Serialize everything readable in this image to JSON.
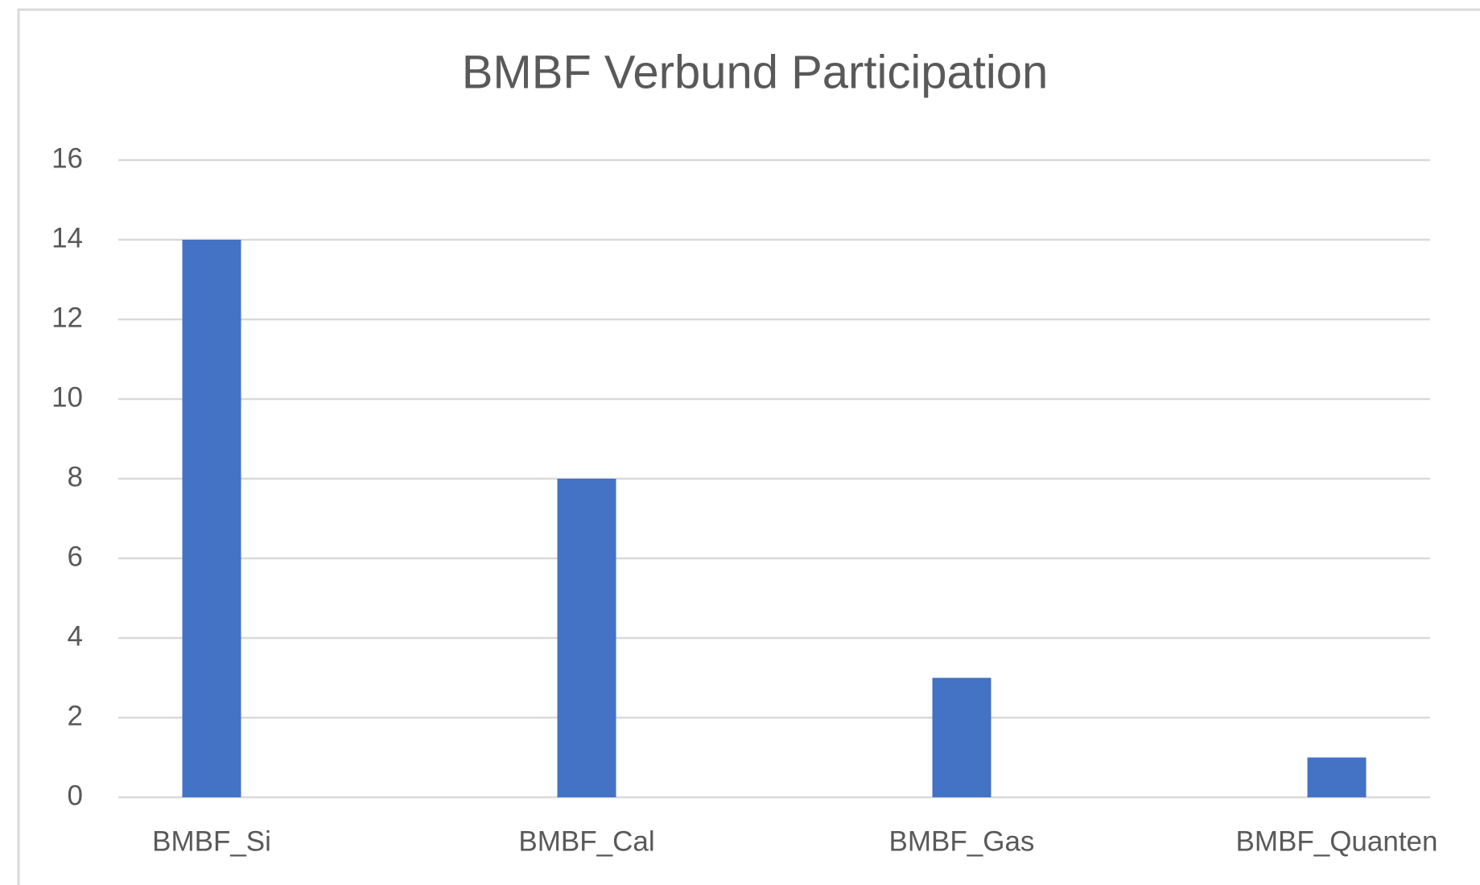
{
  "chart_data": {
    "type": "bar",
    "title": "BMBF Verbund Participation",
    "categories": [
      "BMBF_Si",
      "BMBF_Cal",
      "BMBF_Gas",
      "BMBF_Quanten"
    ],
    "values": [
      14,
      8,
      3,
      1
    ],
    "color": "#4472c4",
    "ylim": [
      0,
      16
    ],
    "yticks": [
      0,
      2,
      4,
      6,
      8,
      10,
      12,
      14,
      16
    ],
    "grid": true
  }
}
